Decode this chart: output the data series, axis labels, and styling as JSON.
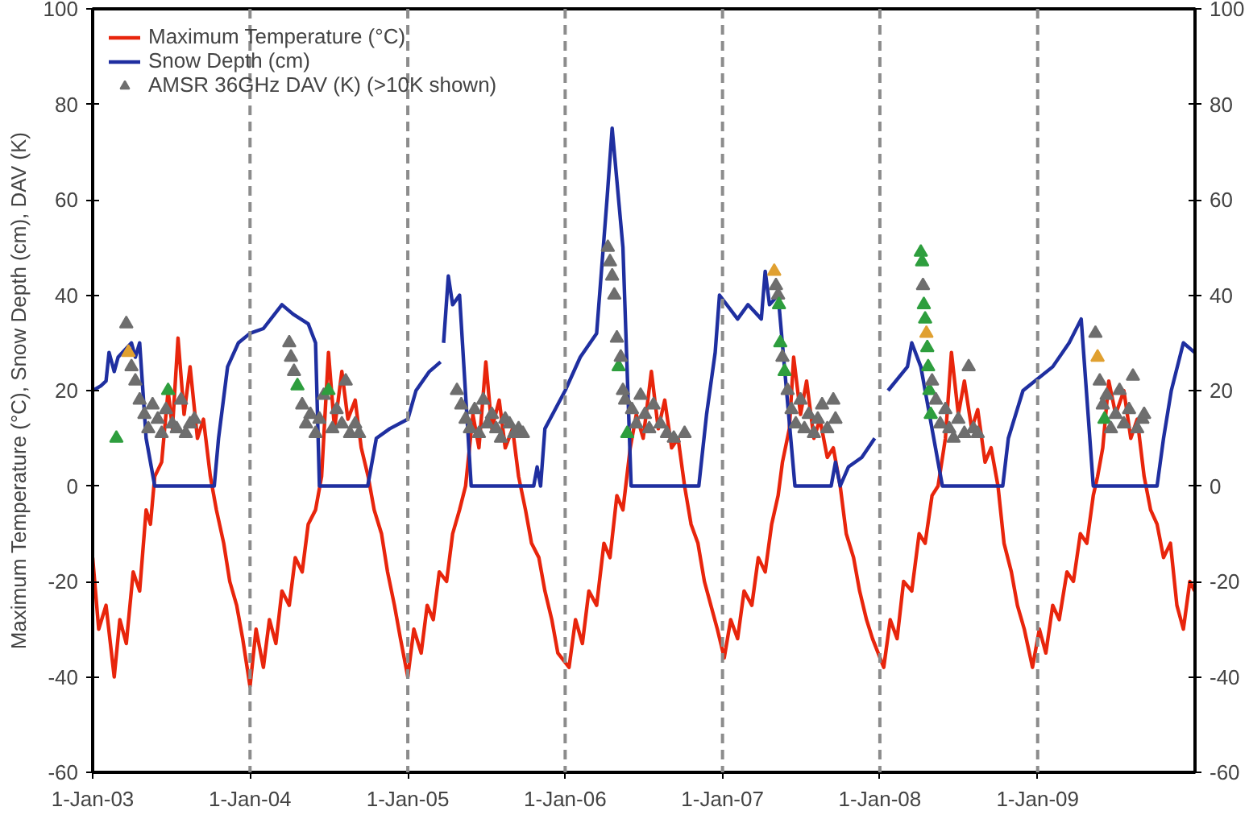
{
  "chart_data": {
    "type": "line",
    "ylabel": "Maximum Temperature (°C), Snow Depth (cm), DAV (K)",
    "xlim": [
      "2003-01-01",
      "2010-01-01"
    ],
    "xticks": [
      {
        "value": "2003-01-01",
        "label": "1-Jan-03"
      },
      {
        "value": "2004-01-01",
        "label": "1-Jan-04"
      },
      {
        "value": "2005-01-01",
        "label": "1-Jan-05"
      },
      {
        "value": "2006-01-01",
        "label": "1-Jan-06"
      },
      {
        "value": "2007-01-01",
        "label": "1-Jan-07"
      },
      {
        "value": "2008-01-01",
        "label": "1-Jan-08"
      },
      {
        "value": "2009-01-01",
        "label": "1-Jan-09"
      }
    ],
    "ylim": [
      -60,
      100
    ],
    "yticks": [
      -60,
      -40,
      -20,
      0,
      20,
      40,
      60,
      80,
      100
    ],
    "y2lim": [
      -60,
      100
    ],
    "y2ticks": [
      -60,
      -40,
      -20,
      0,
      20,
      40,
      60,
      80,
      100
    ],
    "grid": false,
    "legend": "top left",
    "ref_lines": [
      {
        "axis": "x",
        "value": "2004-01-01",
        "color": "#8c8c8c",
        "line_style": "dashed"
      },
      {
        "axis": "x",
        "value": "2005-01-01",
        "color": "#8c8c8c",
        "line_style": "dashed"
      },
      {
        "axis": "x",
        "value": "2006-01-01",
        "color": "#8c8c8c",
        "line_style": "dashed"
      },
      {
        "axis": "x",
        "value": "2007-01-01",
        "color": "#8c8c8c",
        "line_style": "dashed"
      },
      {
        "axis": "x",
        "value": "2008-01-01",
        "color": "#8c8c8c",
        "line_style": "dashed"
      },
      {
        "axis": "x",
        "value": "2009-01-01",
        "color": "#8c8c8c",
        "line_style": "dashed"
      }
    ],
    "series": [
      {
        "name": "Maximum Temperature (°C)",
        "color": "#e8250c",
        "line_style": "solid",
        "marker": "none",
        "x": [
          "2003-01-01",
          "2003-01-15",
          "2003-02-01",
          "2003-02-20",
          "2003-03-05",
          "2003-03-20",
          "2003-04-05",
          "2003-04-20",
          "2003-05-05",
          "2003-05-15",
          "2003-05-25",
          "2003-06-10",
          "2003-06-25",
          "2003-07-05",
          "2003-07-18",
          "2003-08-01",
          "2003-08-15",
          "2003-09-01",
          "2003-09-15",
          "2003-10-01",
          "2003-10-15",
          "2003-11-01",
          "2003-11-15",
          "2003-12-01",
          "2003-12-15",
          "2004-01-01",
          "2004-01-15",
          "2004-02-01",
          "2004-02-15",
          "2004-03-01",
          "2004-03-15",
          "2004-04-01",
          "2004-04-15",
          "2004-05-01",
          "2004-05-15",
          "2004-06-01",
          "2004-06-15",
          "2004-07-01",
          "2004-07-15",
          "2004-08-01",
          "2004-08-15",
          "2004-09-01",
          "2004-09-15",
          "2004-10-01",
          "2004-10-15",
          "2004-11-01",
          "2004-11-15",
          "2004-12-01",
          "2004-12-15",
          "2005-01-01",
          "2005-01-15",
          "2005-02-01",
          "2005-02-15",
          "2005-03-01",
          "2005-03-15",
          "2005-04-01",
          "2005-04-15",
          "2005-05-01",
          "2005-05-15",
          "2005-06-01",
          "2005-06-15",
          "2005-07-01",
          "2005-07-15",
          "2005-08-01",
          "2005-08-15",
          "2005-09-01",
          "2005-09-15",
          "2005-10-01",
          "2005-10-15",
          "2005-11-01",
          "2005-11-15",
          "2005-12-01",
          "2005-12-15",
          "2006-01-10",
          "2006-01-25",
          "2006-02-10",
          "2006-02-25",
          "2006-03-15",
          "2006-04-01",
          "2006-04-15",
          "2006-05-01",
          "2006-05-15",
          "2006-06-01",
          "2006-06-15",
          "2006-07-01",
          "2006-07-20",
          "2006-08-05",
          "2006-08-20",
          "2006-09-05",
          "2006-09-20",
          "2006-10-05",
          "2006-10-20",
          "2006-11-05",
          "2006-11-20",
          "2006-12-05",
          "2006-12-20",
          "2007-01-05",
          "2007-01-20",
          "2007-02-05",
          "2007-02-20",
          "2007-03-10",
          "2007-03-25",
          "2007-04-10",
          "2007-04-25",
          "2007-05-10",
          "2007-05-20",
          "2007-06-05",
          "2007-06-15",
          "2007-07-01",
          "2007-07-15",
          "2007-08-01",
          "2007-08-15",
          "2007-09-01",
          "2007-09-15",
          "2007-10-01",
          "2007-10-15",
          "2007-11-01",
          "2007-11-15",
          "2007-12-01",
          "2007-12-15",
          "2008-01-10",
          "2008-01-25",
          "2008-02-10",
          "2008-02-25",
          "2008-03-15",
          "2008-04-01",
          "2008-04-15",
          "2008-05-01",
          "2008-05-15",
          "2008-06-01",
          "2008-06-15",
          "2008-07-01",
          "2008-07-15",
          "2008-08-01",
          "2008-08-15",
          "2008-09-01",
          "2008-09-15",
          "2008-10-01",
          "2008-10-15",
          "2008-11-01",
          "2008-11-15",
          "2008-12-01",
          "2008-12-20",
          "2009-01-05",
          "2009-01-20",
          "2009-02-05",
          "2009-02-20",
          "2009-03-10",
          "2009-03-25",
          "2009-04-10",
          "2009-04-25",
          "2009-05-10",
          "2009-05-20",
          "2009-06-01",
          "2009-06-15",
          "2009-07-01",
          "2009-07-20",
          "2009-08-05",
          "2009-08-20",
          "2009-09-05",
          "2009-09-20",
          "2009-10-05",
          "2009-10-20",
          "2009-11-05",
          "2009-11-20",
          "2009-12-05",
          "2009-12-20",
          "2009-12-31"
        ],
        "values": [
          -15,
          -30,
          -25,
          -40,
          -28,
          -33,
          -18,
          -22,
          -5,
          -8,
          2,
          5,
          20,
          12,
          31,
          15,
          25,
          10,
          14,
          2,
          -5,
          -12,
          -20,
          -25,
          -32,
          -42,
          -30,
          -38,
          -28,
          -33,
          -22,
          -25,
          -15,
          -18,
          -8,
          -5,
          2,
          28,
          12,
          24,
          14,
          18,
          8,
          2,
          -5,
          -10,
          -18,
          -25,
          -32,
          -40,
          -30,
          -35,
          -25,
          -28,
          -18,
          -20,
          -10,
          -5,
          0,
          15,
          8,
          26,
          12,
          18,
          8,
          12,
          2,
          -5,
          -12,
          -15,
          -22,
          -28,
          -35,
          -38,
          -28,
          -33,
          -22,
          -25,
          -12,
          -15,
          -2,
          -5,
          8,
          15,
          10,
          24,
          12,
          18,
          8,
          10,
          0,
          -8,
          -12,
          -20,
          -25,
          -30,
          -36,
          -28,
          -32,
          -22,
          -25,
          -15,
          -18,
          -8,
          -2,
          5,
          12,
          27,
          15,
          22,
          10,
          14,
          6,
          8,
          0,
          -10,
          -15,
          -22,
          -28,
          -32,
          -38,
          -28,
          -32,
          -20,
          -22,
          -10,
          -12,
          -2,
          0,
          10,
          28,
          15,
          22,
          12,
          16,
          5,
          8,
          0,
          -12,
          -18,
          -25,
          -30,
          -38,
          -30,
          -35,
          -25,
          -28,
          -18,
          -20,
          -10,
          -12,
          -2,
          2,
          8,
          22,
          15,
          20,
          10,
          14,
          2,
          -5,
          -8,
          -15,
          -12,
          -25,
          -30,
          -20,
          -22
        ]
      },
      {
        "name": "Snow Depth (cm)",
        "color": "#1f2fa0",
        "line_style": "solid",
        "marker": "none",
        "x": [
          "2003-01-01",
          "2003-01-20",
          "2003-02-01",
          "2003-02-08",
          "2003-02-20",
          "2003-03-01",
          "2003-04-01",
          "2003-04-10",
          "2003-04-20",
          "2003-05-05",
          "2003-05-25",
          "2003-10-10",
          "2003-10-20",
          "2003-11-10",
          "2003-12-05",
          "2004-01-01",
          "2004-02-01",
          "2004-03-15",
          "2004-04-10",
          "2004-05-15",
          "2004-06-01",
          "2004-06-10",
          "2004-09-30",
          "2004-10-20",
          "2004-11-20",
          "2005-01-01",
          "2005-01-20",
          "2005-02-20",
          "2005-03-18",
          "2005-03-22",
          "2005-03-25",
          "2005-04-05",
          "2005-04-15",
          "2005-05-01",
          "2005-05-28",
          "2005-10-20",
          "2005-10-28",
          "2005-11-05",
          "2005-11-15",
          "2006-01-01",
          "2006-02-05",
          "2006-03-15",
          "2006-04-08",
          "2006-04-20",
          "2006-05-15",
          "2006-06-03",
          "2006-11-07",
          "2006-11-25",
          "2006-12-15",
          "2006-12-25",
          "2007-02-05",
          "2007-03-01",
          "2007-04-01",
          "2007-04-10",
          "2007-04-20",
          "2007-05-10",
          "2007-06-18",
          "2007-09-10",
          "2007-09-20",
          "2007-10-01",
          "2007-10-20",
          "2007-11-20",
          "2007-12-20",
          "2008-01-05",
          "2008-01-20",
          "2008-03-05",
          "2008-03-15",
          "2008-04-05",
          "2008-05-25",
          "2008-10-12",
          "2008-10-25",
          "2008-11-28",
          "2009-02-05",
          "2009-03-15",
          "2009-04-12",
          "2009-05-10",
          "2009-10-05",
          "2009-10-20",
          "2009-11-07",
          "2009-12-05",
          "2009-12-31"
        ],
        "values": [
          20,
          21,
          22,
          28,
          24,
          27,
          30,
          27,
          30,
          10,
          0,
          0,
          10,
          25,
          30,
          32,
          33,
          38,
          36,
          34,
          30,
          0,
          0,
          10,
          12,
          14,
          20,
          24,
          26,
          null,
          30,
          44,
          38,
          40,
          0,
          0,
          4,
          0,
          12,
          20,
          27,
          32,
          60,
          75,
          50,
          0,
          0,
          15,
          28,
          40,
          35,
          38,
          35,
          45,
          38,
          40,
          0,
          0,
          5,
          0,
          4,
          6,
          10,
          null,
          20,
          25,
          30,
          25,
          0,
          0,
          10,
          20,
          25,
          30,
          35,
          0,
          0,
          10,
          20,
          30,
          28
        ]
      },
      {
        "name": "AMSR 36GHz DAV (K) (>10K shown)",
        "type": "scatter",
        "marker": "triangle",
        "color": "#6e6e6e",
        "x": [
          "2003-02-25",
          "2003-03-20",
          "2003-03-25",
          "2003-04-01",
          "2003-04-10",
          "2003-04-20",
          "2003-05-01",
          "2003-05-10",
          "2003-05-20",
          "2003-06-01",
          "2003-06-10",
          "2003-06-20",
          "2003-06-25",
          "2003-07-05",
          "2003-07-15",
          "2003-07-25",
          "2003-08-05",
          "2003-08-15",
          "2003-08-25",
          "2004-04-01",
          "2004-04-05",
          "2004-04-12",
          "2004-04-20",
          "2004-05-01",
          "2004-05-10",
          "2004-05-20",
          "2004-06-01",
          "2004-06-10",
          "2004-06-20",
          "2004-07-01",
          "2004-07-10",
          "2004-07-20",
          "2004-08-01",
          "2004-08-10",
          "2004-08-20",
          "2004-09-01",
          "2004-09-10",
          "2005-04-25",
          "2005-05-05",
          "2005-05-15",
          "2005-05-25",
          "2005-06-05",
          "2005-06-15",
          "2005-06-25",
          "2005-07-05",
          "2005-07-15",
          "2005-07-25",
          "2005-08-05",
          "2005-08-15",
          "2005-08-25",
          "2005-09-05",
          "2005-09-15",
          "2005-09-25",
          "2006-04-10",
          "2006-04-15",
          "2006-04-20",
          "2006-04-25",
          "2006-05-01",
          "2006-05-05",
          "2006-05-10",
          "2006-05-15",
          "2006-05-20",
          "2006-05-25",
          "2006-06-05",
          "2006-06-15",
          "2006-06-25",
          "2006-07-05",
          "2006-07-15",
          "2006-07-25",
          "2006-08-10",
          "2006-08-25",
          "2006-09-10",
          "2006-10-05",
          "2007-05-01",
          "2007-05-05",
          "2007-05-10",
          "2007-05-12",
          "2007-05-15",
          "2007-05-20",
          "2007-05-25",
          "2007-06-01",
          "2007-06-10",
          "2007-06-20",
          "2007-07-01",
          "2007-07-10",
          "2007-07-20",
          "2007-08-01",
          "2007-08-10",
          "2007-08-20",
          "2007-09-01",
          "2007-09-15",
          "2007-09-20",
          "2008-04-05",
          "2008-04-08",
          "2008-04-10",
          "2008-04-12",
          "2008-04-15",
          "2008-04-18",
          "2008-04-20",
          "2008-04-22",
          "2008-04-25",
          "2008-04-28",
          "2008-05-01",
          "2008-05-10",
          "2008-05-20",
          "2008-06-01",
          "2008-06-10",
          "2008-06-20",
          "2008-07-01",
          "2008-07-15",
          "2008-07-25",
          "2008-08-05",
          "2008-08-15",
          "2009-05-15",
          "2009-05-20",
          "2009-05-25",
          "2009-06-01",
          "2009-06-05",
          "2009-06-10",
          "2009-06-20",
          "2009-07-01",
          "2009-07-10",
          "2009-07-20",
          "2009-08-01",
          "2009-08-10",
          "2009-08-20",
          "2009-09-01",
          "2009-09-05"
        ],
        "values": [
          10,
          34,
          28,
          25,
          22,
          18,
          15,
          12,
          17,
          14,
          11,
          16,
          20,
          13,
          12,
          18,
          11,
          13,
          14,
          30,
          27,
          24,
          21,
          17,
          13,
          15,
          11,
          14,
          19,
          20,
          12,
          16,
          13,
          22,
          11,
          13,
          11,
          20,
          17,
          14,
          12,
          16,
          11,
          18,
          13,
          15,
          12,
          10,
          14,
          13,
          11,
          12,
          11,
          50,
          47,
          44,
          40,
          31,
          25,
          27,
          20,
          18,
          11,
          16,
          13,
          19,
          15,
          12,
          17,
          13,
          11,
          10,
          11,
          45,
          42,
          40,
          38,
          30,
          27,
          24,
          20,
          16,
          13,
          18,
          12,
          15,
          11,
          14,
          17,
          12,
          18,
          14,
          49,
          47,
          42,
          38,
          35,
          32,
          29,
          25,
          20,
          15,
          22,
          18,
          13,
          16,
          12,
          10,
          14,
          11,
          25,
          12,
          11,
          32,
          27,
          22,
          17,
          14,
          19,
          12,
          15,
          20,
          13,
          16,
          23,
          12,
          14,
          15
        ],
        "colors": [
          "#2e9e3e",
          "#6e6e6e",
          "#e0a030",
          "#6e6e6e",
          "#6e6e6e",
          "#6e6e6e",
          "#6e6e6e",
          "#6e6e6e",
          "#6e6e6e",
          "#6e6e6e",
          "#6e6e6e",
          "#6e6e6e",
          "#2e9e3e",
          "#6e6e6e",
          "#6e6e6e",
          "#6e6e6e",
          "#6e6e6e",
          "#6e6e6e",
          "#6e6e6e",
          "#6e6e6e",
          "#6e6e6e",
          "#6e6e6e",
          "#2e9e3e",
          "#6e6e6e",
          "#6e6e6e",
          "#6e6e6e",
          "#6e6e6e",
          "#6e6e6e",
          "#6e6e6e",
          "#2e9e3e",
          "#6e6e6e",
          "#6e6e6e",
          "#6e6e6e",
          "#6e6e6e",
          "#6e6e6e",
          "#6e6e6e",
          "#6e6e6e",
          "#6e6e6e",
          "#6e6e6e",
          "#6e6e6e",
          "#6e6e6e",
          "#6e6e6e",
          "#6e6e6e",
          "#6e6e6e",
          "#6e6e6e",
          "#6e6e6e",
          "#6e6e6e",
          "#6e6e6e",
          "#6e6e6e",
          "#6e6e6e",
          "#6e6e6e",
          "#6e6e6e",
          "#6e6e6e",
          "#6e6e6e",
          "#6e6e6e",
          "#6e6e6e",
          "#6e6e6e",
          "#6e6e6e",
          "#2e9e3e",
          "#6e6e6e",
          "#6e6e6e",
          "#6e6e6e",
          "#2e9e3e",
          "#6e6e6e",
          "#6e6e6e",
          "#6e6e6e",
          "#6e6e6e",
          "#6e6e6e",
          "#6e6e6e",
          "#6e6e6e",
          "#6e6e6e",
          "#6e6e6e",
          "#6e6e6e",
          "#e0a030",
          "#6e6e6e",
          "#6e6e6e",
          "#2e9e3e",
          "#2e9e3e",
          "#6e6e6e",
          "#2e9e3e",
          "#6e6e6e",
          "#6e6e6e",
          "#6e6e6e",
          "#6e6e6e",
          "#6e6e6e",
          "#6e6e6e",
          "#6e6e6e",
          "#6e6e6e",
          "#6e6e6e",
          "#6e6e6e",
          "#6e6e6e",
          "#6e6e6e",
          "#2e9e3e",
          "#2e9e3e",
          "#6e6e6e",
          "#2e9e3e",
          "#2e9e3e",
          "#e0a030",
          "#2e9e3e",
          "#2e9e3e",
          "#2e9e3e",
          "#2e9e3e",
          "#6e6e6e",
          "#6e6e6e",
          "#6e6e6e",
          "#6e6e6e",
          "#6e6e6e",
          "#6e6e6e",
          "#6e6e6e",
          "#6e6e6e",
          "#6e6e6e",
          "#6e6e6e",
          "#6e6e6e",
          "#6e6e6e",
          "#e0a030",
          "#6e6e6e",
          "#6e6e6e",
          "#2e9e3e",
          "#6e6e6e",
          "#6e6e6e",
          "#6e6e6e",
          "#6e6e6e",
          "#6e6e6e",
          "#6e6e6e",
          "#6e6e6e",
          "#6e6e6e",
          "#6e6e6e",
          "#6e6e6e"
        ]
      }
    ]
  }
}
